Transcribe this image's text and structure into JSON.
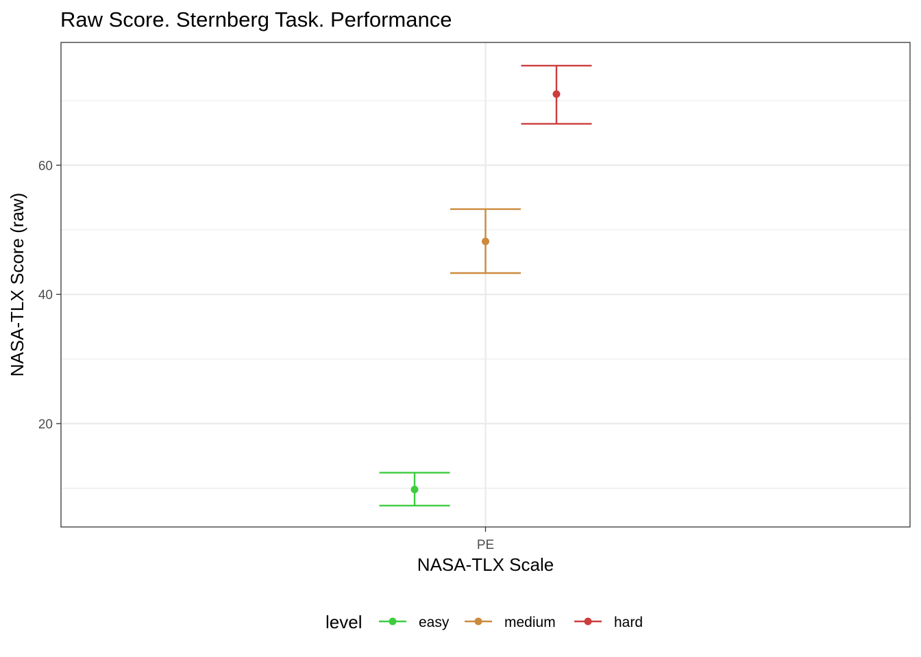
{
  "chart_data": {
    "type": "scatter",
    "title": "Raw Score. Sternberg Task. Performance",
    "xlabel": "NASA-TLX Scale",
    "ylabel": "NASA-TLX Score (raw)",
    "categories": [
      "PE"
    ],
    "ylim": [
      4,
      79
    ],
    "y_ticks": [
      20,
      40,
      60
    ],
    "grid": true,
    "legend": {
      "title": "level",
      "position": "bottom"
    },
    "series": [
      {
        "name": "easy",
        "color": "#3dcc3d",
        "category": "PE",
        "y": 9.8,
        "ymin": 7.3,
        "ymax": 12.4
      },
      {
        "name": "medium",
        "color": "#cc8a3d",
        "category": "PE",
        "y": 48.2,
        "ymin": 43.3,
        "ymax": 53.2
      },
      {
        "name": "hard",
        "color": "#cc3d3d",
        "category": "PE",
        "y": 71.0,
        "ymin": 66.4,
        "ymax": 75.4
      }
    ]
  }
}
